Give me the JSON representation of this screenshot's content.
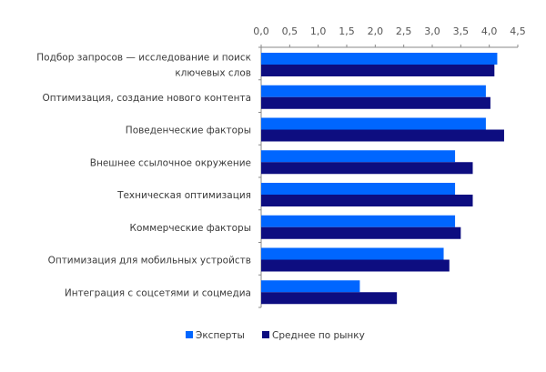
{
  "chart_data": {
    "type": "bar",
    "orientation": "horizontal",
    "categories": [
      [
        "Подбор запросов — исследование и поиск",
        "ключевых слов"
      ],
      [
        "Оптимизация, создание нового контента"
      ],
      [
        "Поведенческие факторы"
      ],
      [
        "Внешнее ссылочное окружение"
      ],
      [
        "Техническая оптимизация"
      ],
      [
        "Коммерческие факторы"
      ],
      [
        "Оптимизация для мобильных устройств"
      ],
      [
        "Интеграция с соцсетями и соцмедиа"
      ]
    ],
    "series": [
      {
        "name": "Эксперты",
        "color": "#0066ff",
        "values": [
          4.14,
          3.94,
          3.94,
          3.4,
          3.4,
          3.4,
          3.2,
          1.73
        ]
      },
      {
        "name": "Среднее по рынку",
        "color": "#0d0d80",
        "values": [
          4.09,
          4.02,
          4.26,
          3.71,
          3.71,
          3.5,
          3.3,
          2.38
        ]
      }
    ],
    "xlim": [
      0,
      4.5
    ],
    "ticks": [
      "0,0",
      "0,5",
      "1,0",
      "1,5",
      "2,0",
      "2,5",
      "3,0",
      "3,5",
      "4,0",
      "4,5"
    ],
    "tick_values": [
      0,
      0.5,
      1,
      1.5,
      2,
      2.5,
      3,
      3.5,
      4,
      4.5
    ],
    "axis_position": "top",
    "grid": false,
    "legend_position": "bottom"
  }
}
